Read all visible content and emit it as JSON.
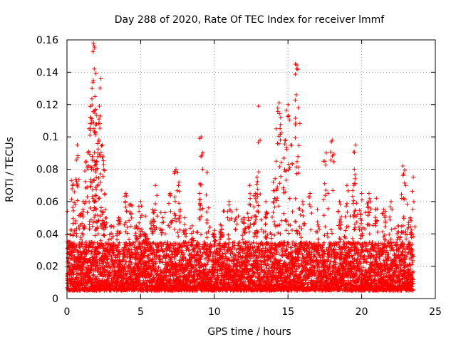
{
  "chart_data": {
    "type": "scatter",
    "title": "Day 288 of 2020, Rate Of TEC Index for receiver lmmf",
    "xlabel": "GPS time / hours",
    "ylabel": "ROTI / TECUs",
    "xlim": [
      0,
      25
    ],
    "ylim": [
      0,
      0.16
    ],
    "xticks": [
      0,
      5,
      10,
      15,
      20,
      25
    ],
    "xtick_labels": [
      "0",
      "5",
      "10",
      "15",
      "20",
      "25"
    ],
    "yticks": [
      0,
      0.02,
      0.04,
      0.06,
      0.08,
      0.1,
      0.12,
      0.14,
      0.16
    ],
    "ytick_labels": [
      "0",
      "0.02",
      "0.04",
      "0.06",
      "0.08",
      "0.1",
      "0.12",
      "0.14",
      "0.16"
    ],
    "grid": true,
    "marker": "plus",
    "color": "#ff0000",
    "series": [
      {
        "name": "ROTI",
        "x": [
          0.1,
          0.3,
          0.5,
          0.7,
          0.9,
          1.1,
          1.3,
          1.5,
          1.6,
          1.7,
          1.8,
          1.85,
          1.9,
          1.95,
          2.0,
          2.1,
          2.2,
          2.3,
          2.4,
          2.5,
          2.6,
          3.0,
          3.5,
          4.0,
          4.3,
          4.7,
          5.0,
          5.3,
          5.8,
          6.0,
          6.5,
          7.0,
          7.4,
          7.6,
          8.0,
          8.5,
          9.0,
          9.1,
          9.5,
          10.0,
          10.5,
          11.0,
          11.5,
          12.0,
          12.4,
          12.8,
          12.9,
          13.0,
          13.5,
          14.0,
          14.2,
          14.4,
          14.5,
          14.8,
          15.0,
          15.2,
          15.5,
          15.6,
          15.7,
          16.0,
          16.5,
          17.0,
          17.5,
          17.6,
          18.0,
          18.5,
          19.0,
          19.5,
          19.6,
          20.0,
          20.5,
          21.0,
          21.5,
          22.0,
          22.5,
          22.8,
          23.0,
          23.3,
          23.5
        ],
        "y": [
          0.035,
          0.073,
          0.066,
          0.095,
          0.052,
          0.06,
          0.085,
          0.105,
          0.112,
          0.13,
          0.158,
          0.142,
          0.125,
          0.117,
          0.108,
          0.09,
          0.119,
          0.136,
          0.095,
          0.08,
          0.055,
          0.045,
          0.05,
          0.065,
          0.058,
          0.045,
          0.06,
          0.04,
          0.055,
          0.07,
          0.05,
          0.065,
          0.08,
          0.072,
          0.05,
          0.045,
          0.065,
          0.1,
          0.078,
          0.04,
          0.045,
          0.06,
          0.055,
          0.05,
          0.07,
          0.065,
          0.075,
          0.119,
          0.06,
          0.072,
          0.105,
          0.121,
          0.112,
          0.098,
          0.12,
          0.095,
          0.145,
          0.142,
          0.118,
          0.06,
          0.065,
          0.055,
          0.085,
          0.09,
          0.098,
          0.06,
          0.07,
          0.08,
          0.095,
          0.065,
          0.065,
          0.062,
          0.055,
          0.06,
          0.045,
          0.082,
          0.07,
          0.05,
          0.075
        ],
        "baseline_range": [
          0.005,
          0.035
        ]
      }
    ]
  }
}
